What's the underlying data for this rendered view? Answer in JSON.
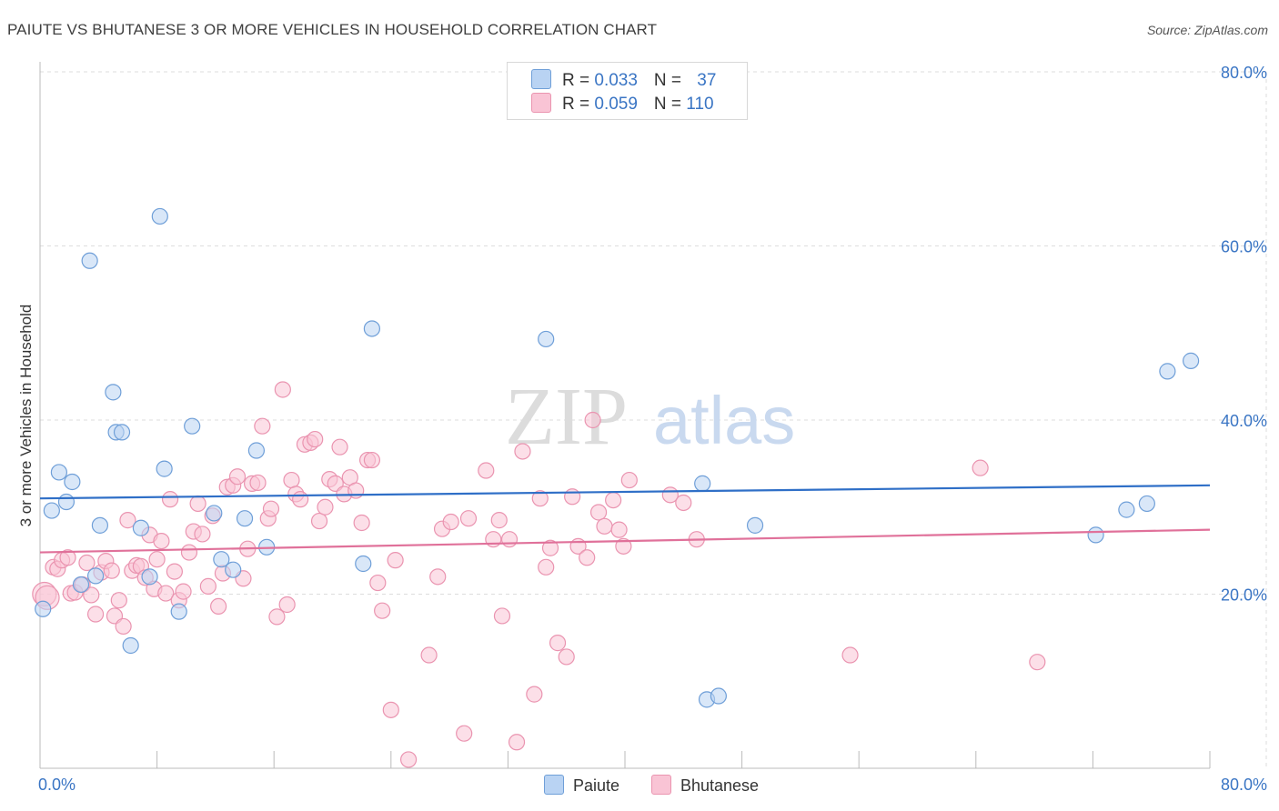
{
  "title": "PAIUTE VS BHUTANESE 3 OR MORE VEHICLES IN HOUSEHOLD CORRELATION CHART",
  "source": "Source: ZipAtlas.com",
  "watermark": {
    "zip": "ZIP",
    "atlas": "atlas"
  },
  "legend": {
    "paiute": {
      "r_label": "R = ",
      "r_value": "0.033",
      "n_label": "N = ",
      "n_value": "37"
    },
    "bhutanese": {
      "r_label": "R = ",
      "r_value": "0.059",
      "n_label": "N = ",
      "n_value": "110"
    }
  },
  "bottom_legend": {
    "paiute": "Paiute",
    "bhutanese": "Bhutanese"
  },
  "colors": {
    "paiute_fill": "#b9d3f3",
    "paiute_stroke": "#6f9fd8",
    "paiute_line": "#2f6fc7",
    "bhutanese_fill": "#f9c4d5",
    "bhutanese_stroke": "#ea94b0",
    "bhutanese_line": "#e0719a",
    "tick_label": "#3a75c4",
    "grid": "#dddddd"
  },
  "chart_data": {
    "type": "scatter",
    "title": "PAIUTE VS BHUTANESE 3 OR MORE VEHICLES IN HOUSEHOLD CORRELATION CHART",
    "xlabel": "",
    "ylabel": "3 or more Vehicles in Household",
    "xlim": [
      0,
      80
    ],
    "ylim": [
      0,
      80
    ],
    "x_tick_labels": [
      "0.0%",
      "80.0%"
    ],
    "y_ticks": [
      20,
      40,
      60,
      80
    ],
    "y_tick_labels": [
      "20.0%",
      "40.0%",
      "60.0%",
      "80.0%"
    ],
    "grid": true,
    "legend_position": "top-center",
    "series": [
      {
        "name": "Paiute",
        "r": 0.033,
        "n": 37,
        "trend": {
          "x0": 0,
          "y0": 31.0,
          "x1": 80,
          "y1": 32.5
        },
        "points": [
          [
            0.2,
            18.3
          ],
          [
            0.8,
            29.6
          ],
          [
            1.3,
            34.0
          ],
          [
            1.8,
            30.6
          ],
          [
            2.2,
            32.9
          ],
          [
            2.8,
            21.1
          ],
          [
            3.4,
            58.3
          ],
          [
            3.8,
            22.1
          ],
          [
            4.1,
            27.9
          ],
          [
            5.0,
            43.2
          ],
          [
            5.2,
            38.6
          ],
          [
            5.6,
            38.6
          ],
          [
            6.2,
            14.1
          ],
          [
            6.9,
            27.6
          ],
          [
            7.5,
            22.0
          ],
          [
            8.2,
            63.4
          ],
          [
            8.5,
            34.4
          ],
          [
            9.5,
            18.0
          ],
          [
            10.4,
            39.3
          ],
          [
            11.9,
            29.3
          ],
          [
            12.4,
            24.0
          ],
          [
            13.2,
            22.8
          ],
          [
            14.0,
            28.7
          ],
          [
            14.8,
            36.5
          ],
          [
            15.5,
            25.4
          ],
          [
            22.1,
            23.5
          ],
          [
            22.7,
            50.5
          ],
          [
            34.6,
            49.3
          ],
          [
            45.3,
            32.7
          ],
          [
            45.6,
            7.9
          ],
          [
            46.4,
            8.3
          ],
          [
            48.9,
            27.9
          ],
          [
            72.2,
            26.8
          ],
          [
            74.3,
            29.7
          ],
          [
            75.7,
            30.4
          ],
          [
            77.1,
            45.6
          ],
          [
            78.7,
            46.8
          ]
        ]
      },
      {
        "name": "Bhutanese",
        "r": 0.059,
        "n": 110,
        "trend": {
          "x0": 0,
          "y0": 24.8,
          "x1": 80,
          "y1": 27.4
        },
        "points": [
          [
            0.3,
            20.0
          ],
          [
            0.5,
            19.6
          ],
          [
            0.9,
            23.1
          ],
          [
            1.2,
            22.9
          ],
          [
            1.5,
            23.9
          ],
          [
            1.9,
            24.2
          ],
          [
            2.1,
            20.1
          ],
          [
            2.4,
            20.2
          ],
          [
            2.9,
            21.1
          ],
          [
            3.2,
            23.6
          ],
          [
            3.5,
            19.9
          ],
          [
            3.8,
            17.7
          ],
          [
            4.2,
            22.5
          ],
          [
            4.5,
            23.8
          ],
          [
            4.9,
            22.7
          ],
          [
            5.1,
            17.5
          ],
          [
            5.4,
            19.3
          ],
          [
            5.7,
            16.3
          ],
          [
            6.0,
            28.5
          ],
          [
            6.3,
            22.7
          ],
          [
            6.6,
            23.3
          ],
          [
            6.9,
            23.2
          ],
          [
            7.2,
            21.9
          ],
          [
            7.5,
            26.8
          ],
          [
            7.8,
            20.6
          ],
          [
            8.0,
            24.0
          ],
          [
            8.3,
            26.1
          ],
          [
            8.6,
            20.1
          ],
          [
            8.9,
            30.9
          ],
          [
            9.2,
            22.6
          ],
          [
            9.5,
            19.3
          ],
          [
            9.8,
            20.3
          ],
          [
            10.2,
            24.8
          ],
          [
            10.5,
            27.2
          ],
          [
            10.8,
            30.4
          ],
          [
            11.1,
            26.9
          ],
          [
            11.5,
            20.9
          ],
          [
            11.8,
            29.0
          ],
          [
            12.2,
            18.6
          ],
          [
            12.5,
            22.4
          ],
          [
            12.8,
            32.3
          ],
          [
            13.2,
            32.5
          ],
          [
            13.5,
            33.5
          ],
          [
            13.9,
            21.8
          ],
          [
            14.2,
            25.2
          ],
          [
            14.5,
            32.7
          ],
          [
            14.9,
            32.8
          ],
          [
            15.2,
            39.3
          ],
          [
            15.6,
            28.7
          ],
          [
            15.8,
            29.8
          ],
          [
            16.2,
            17.4
          ],
          [
            16.6,
            43.5
          ],
          [
            16.9,
            18.8
          ],
          [
            17.2,
            33.1
          ],
          [
            17.5,
            31.5
          ],
          [
            17.8,
            30.9
          ],
          [
            18.1,
            37.2
          ],
          [
            18.5,
            37.4
          ],
          [
            18.8,
            37.8
          ],
          [
            19.1,
            28.4
          ],
          [
            19.5,
            30.0
          ],
          [
            19.8,
            33.2
          ],
          [
            20.2,
            32.7
          ],
          [
            20.5,
            36.9
          ],
          [
            20.8,
            31.5
          ],
          [
            21.2,
            33.4
          ],
          [
            21.6,
            31.9
          ],
          [
            22.0,
            28.2
          ],
          [
            22.4,
            35.4
          ],
          [
            22.7,
            35.4
          ],
          [
            23.1,
            21.3
          ],
          [
            23.4,
            18.1
          ],
          [
            24.0,
            6.7
          ],
          [
            24.3,
            23.9
          ],
          [
            25.2,
            1.0
          ],
          [
            26.6,
            13.0
          ],
          [
            27.2,
            22.0
          ],
          [
            27.5,
            27.5
          ],
          [
            28.1,
            28.3
          ],
          [
            29.0,
            4.0
          ],
          [
            29.3,
            28.7
          ],
          [
            30.5,
            34.2
          ],
          [
            31.0,
            26.3
          ],
          [
            31.4,
            28.5
          ],
          [
            31.6,
            17.5
          ],
          [
            32.1,
            26.3
          ],
          [
            32.6,
            3.0
          ],
          [
            33.0,
            36.4
          ],
          [
            33.8,
            8.5
          ],
          [
            34.2,
            31.0
          ],
          [
            34.6,
            23.1
          ],
          [
            34.9,
            25.3
          ],
          [
            35.4,
            14.4
          ],
          [
            36.0,
            12.8
          ],
          [
            36.4,
            31.2
          ],
          [
            36.8,
            25.5
          ],
          [
            37.4,
            24.2
          ],
          [
            37.8,
            40.0
          ],
          [
            38.2,
            29.4
          ],
          [
            38.6,
            27.8
          ],
          [
            39.2,
            30.8
          ],
          [
            39.6,
            27.4
          ],
          [
            39.9,
            25.5
          ],
          [
            40.3,
            33.1
          ],
          [
            43.1,
            31.4
          ],
          [
            44.0,
            30.5
          ],
          [
            44.9,
            26.3
          ],
          [
            55.4,
            13.0
          ],
          [
            64.3,
            34.5
          ],
          [
            68.2,
            12.2
          ]
        ]
      }
    ]
  }
}
